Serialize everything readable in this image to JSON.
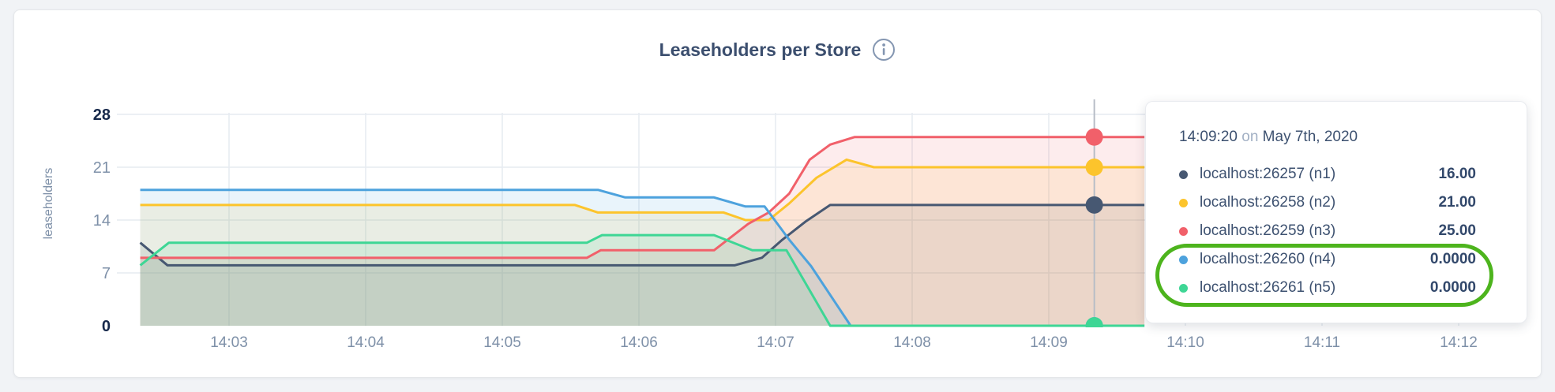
{
  "chart_data": {
    "type": "area",
    "title": "Leaseholders per Store",
    "ylabel": "leaseholders",
    "ylim": [
      0,
      28
    ],
    "x_domain_minutes": [
      2.33,
      12.34
    ],
    "grid": true,
    "legend_position": "tooltip",
    "y_ticks": [
      {
        "value": 0,
        "label": "0",
        "bold": true,
        "gridline": false
      },
      {
        "value": 7,
        "label": "7",
        "bold": false,
        "gridline": true
      },
      {
        "value": 14,
        "label": "14",
        "bold": false,
        "gridline": true
      },
      {
        "value": 21,
        "label": "21",
        "bold": false,
        "gridline": true
      },
      {
        "value": 28,
        "label": "28",
        "bold": true,
        "gridline": true
      }
    ],
    "x_ticks": [
      {
        "t": 3,
        "label": "14:03"
      },
      {
        "t": 4,
        "label": "14:04"
      },
      {
        "t": 5,
        "label": "14:05"
      },
      {
        "t": 6,
        "label": "14:06"
      },
      {
        "t": 7,
        "label": "14:07"
      },
      {
        "t": 8,
        "label": "14:08"
      },
      {
        "t": 9,
        "label": "14:09"
      },
      {
        "t": 10,
        "label": "14:10"
      },
      {
        "t": 11,
        "label": "14:11"
      },
      {
        "t": 12,
        "label": "14:12"
      }
    ],
    "series": [
      {
        "id": "n1",
        "name": "localhost:26257 (n1)",
        "color": "#475872",
        "points": [
          [
            2.35,
            11
          ],
          [
            2.55,
            8
          ],
          [
            6.7,
            8
          ],
          [
            6.9,
            9
          ],
          [
            7.05,
            11.4
          ],
          [
            7.22,
            13.8
          ],
          [
            7.4,
            16
          ],
          [
            9.7,
            16
          ]
        ]
      },
      {
        "id": "n2",
        "name": "localhost:26258 (n2)",
        "color": "#fcc42c",
        "points": [
          [
            2.35,
            16
          ],
          [
            5.53,
            16
          ],
          [
            5.7,
            15
          ],
          [
            6.62,
            15
          ],
          [
            6.78,
            14
          ],
          [
            6.95,
            14
          ],
          [
            7.1,
            16.2
          ],
          [
            7.3,
            19.6
          ],
          [
            7.52,
            22
          ],
          [
            7.72,
            21
          ],
          [
            9.7,
            21
          ]
        ]
      },
      {
        "id": "n3",
        "name": "localhost:26259 (n3)",
        "color": "#f1606a",
        "points": [
          [
            2.35,
            9
          ],
          [
            5.62,
            9
          ],
          [
            5.72,
            10
          ],
          [
            6.55,
            10
          ],
          [
            6.8,
            13.5
          ],
          [
            6.95,
            15
          ],
          [
            7.1,
            17.5
          ],
          [
            7.25,
            22
          ],
          [
            7.4,
            24
          ],
          [
            7.58,
            25
          ],
          [
            9.7,
            25
          ]
        ]
      },
      {
        "id": "n4",
        "name": "localhost:26260 (n4)",
        "color": "#4da2dd",
        "points": [
          [
            2.35,
            18
          ],
          [
            5.7,
            18
          ],
          [
            5.9,
            17
          ],
          [
            6.55,
            17
          ],
          [
            6.78,
            15.8
          ],
          [
            6.92,
            15.8
          ],
          [
            7.1,
            11.4
          ],
          [
            7.26,
            7.9
          ],
          [
            7.55,
            0
          ],
          [
            9.7,
            0
          ]
        ]
      },
      {
        "id": "n5",
        "name": "localhost:26261 (n5)",
        "color": "#3ed695",
        "points": [
          [
            2.35,
            8
          ],
          [
            2.56,
            11
          ],
          [
            5.62,
            11
          ],
          [
            5.73,
            12
          ],
          [
            6.55,
            12
          ],
          [
            6.83,
            10
          ],
          [
            7.08,
            10
          ],
          [
            7.4,
            0
          ],
          [
            9.7,
            0
          ]
        ]
      }
    ],
    "hover": {
      "t": 9.3333,
      "time_label": "14:09:20",
      "values": [
        16,
        21,
        25,
        0,
        0
      ]
    }
  },
  "tooltip": {
    "time": "14:09:20",
    "connector": "on",
    "date": "May 7th, 2020",
    "rows": [
      {
        "name": "localhost:26257 (n1)",
        "value": "16.00",
        "color": "#475872"
      },
      {
        "name": "localhost:26258 (n2)",
        "value": "21.00",
        "color": "#fcc42c"
      },
      {
        "name": "localhost:26259 (n3)",
        "value": "25.00",
        "color": "#f1606a"
      },
      {
        "name": "localhost:26260 (n4)",
        "value": "0.0000",
        "color": "#4da2dd"
      },
      {
        "name": "localhost:26261 (n5)",
        "value": "0.0000",
        "color": "#3ed695"
      }
    ],
    "highlighted_row_indexes": [
      3,
      4
    ],
    "highlight_color": "#4db41d"
  },
  "colors": {
    "grid": "#e6ebf1",
    "crosshair": "#b7bdc6",
    "tick_text": "#7e90a8",
    "tick_text_bold": "#17294b",
    "title_text": "#3b4e6e",
    "icon": "#8496b1"
  }
}
